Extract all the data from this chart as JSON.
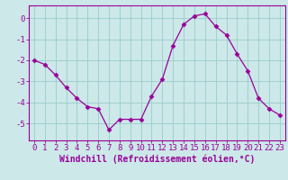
{
  "x": [
    0,
    1,
    2,
    3,
    4,
    5,
    6,
    7,
    8,
    9,
    10,
    11,
    12,
    13,
    14,
    15,
    16,
    17,
    18,
    19,
    20,
    21,
    22,
    23
  ],
  "y": [
    -2.0,
    -2.2,
    -2.7,
    -3.3,
    -3.8,
    -4.2,
    -4.3,
    -5.3,
    -4.8,
    -4.8,
    -4.8,
    -3.7,
    -2.9,
    -1.3,
    -0.3,
    0.1,
    0.2,
    -0.4,
    -0.8,
    -1.7,
    -2.5,
    -3.8,
    -4.3,
    -4.6
  ],
  "line_color": "#990099",
  "marker": "D",
  "marker_size": 2.5,
  "bg_color": "#cce8e8",
  "grid_color": "#99cccc",
  "axis_color": "#990099",
  "spine_color": "#990099",
  "xlabel": "Windchill (Refroidissement éolien,°C)",
  "xlabel_fontsize": 7,
  "tick_fontsize": 6.5,
  "xlim": [
    -0.5,
    23.5
  ],
  "ylim": [
    -5.8,
    0.6
  ],
  "yticks": [
    0,
    -1,
    -2,
    -3,
    -4,
    -5
  ],
  "xticks": [
    0,
    1,
    2,
    3,
    4,
    5,
    6,
    7,
    8,
    9,
    10,
    11,
    12,
    13,
    14,
    15,
    16,
    17,
    18,
    19,
    20,
    21,
    22,
    23
  ]
}
